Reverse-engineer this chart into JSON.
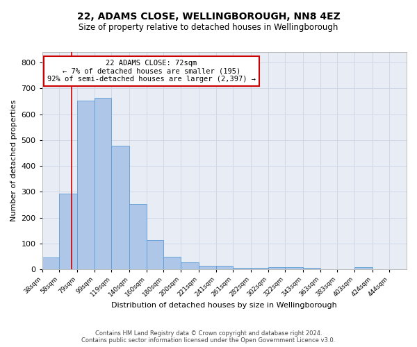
{
  "title": "22, ADAMS CLOSE, WELLINGBOROUGH, NN8 4EZ",
  "subtitle": "Size of property relative to detached houses in Wellingborough",
  "xlabel": "Distribution of detached houses by size in Wellingborough",
  "ylabel": "Number of detached properties",
  "bar_labels": [
    "38sqm",
    "58sqm",
    "79sqm",
    "99sqm",
    "119sqm",
    "140sqm",
    "160sqm",
    "180sqm",
    "200sqm",
    "221sqm",
    "241sqm",
    "261sqm",
    "282sqm",
    "302sqm",
    "322sqm",
    "343sqm",
    "363sqm",
    "383sqm",
    "403sqm",
    "424sqm",
    "444sqm"
  ],
  "bar_values": [
    47,
    293,
    651,
    663,
    477,
    252,
    113,
    49,
    28,
    15,
    13,
    5,
    7,
    8,
    8,
    5,
    1,
    1,
    8,
    1,
    0
  ],
  "bar_color": "#aec6e8",
  "bar_edge_color": "#5b9bd5",
  "vline_x": 72,
  "vline_color": "#cc0000",
  "annotation_text": "22 ADAMS CLOSE: 72sqm\n← 7% of detached houses are smaller (195)\n92% of semi-detached houses are larger (2,397) →",
  "annotation_box_color": "#ffffff",
  "annotation_box_edge": "#cc0000",
  "ylim": [
    0,
    840
  ],
  "yticks": [
    0,
    100,
    200,
    300,
    400,
    500,
    600,
    700,
    800
  ],
  "grid_color": "#d0d8e8",
  "background_color": "#e8edf5",
  "footer_line1": "Contains HM Land Registry data © Crown copyright and database right 2024.",
  "footer_line2": "Contains public sector information licensed under the Open Government Licence v3.0.",
  "title_fontsize": 10,
  "subtitle_fontsize": 8.5,
  "bin_edges": [
    38,
    58,
    79,
    99,
    119,
    140,
    160,
    180,
    200,
    221,
    241,
    261,
    282,
    302,
    322,
    343,
    363,
    383,
    403,
    424,
    444,
    464
  ]
}
